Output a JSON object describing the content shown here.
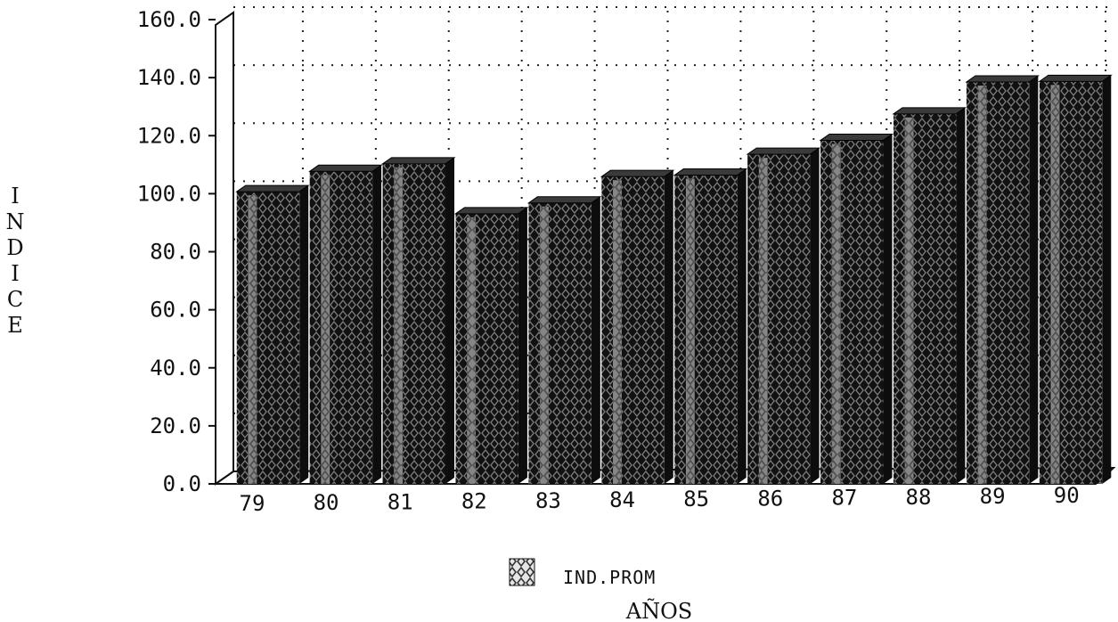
{
  "chart_data": {
    "type": "bar",
    "categories": [
      "79",
      "80",
      "81",
      "82",
      "83",
      "84",
      "85",
      "86",
      "87",
      "88",
      "89",
      "90"
    ],
    "series": [
      {
        "name": "IND.PROM",
        "values": [
          100.7,
          107.7,
          110.3,
          93.1,
          96.8,
          105.9,
          106.4,
          113.6,
          118.4,
          127.5,
          138.5,
          138.7
        ]
      }
    ],
    "xlabel": "AÑOS",
    "ylabel": "INDICE",
    "ylim": [
      0,
      160
    ],
    "yticks": [
      "0.0",
      "20.0",
      "40.0",
      "60.0",
      "80.0",
      "100.0",
      "120.0",
      "140.0",
      "160.0"
    ],
    "grid": true,
    "legend_position": "bottom",
    "colors": {
      "bar": "#1a1a1a",
      "bar_pattern_light": "#d8d8d8",
      "bar_top": "#3a3a3a",
      "grid": "#222222",
      "floor": "#9e9e9e"
    }
  }
}
